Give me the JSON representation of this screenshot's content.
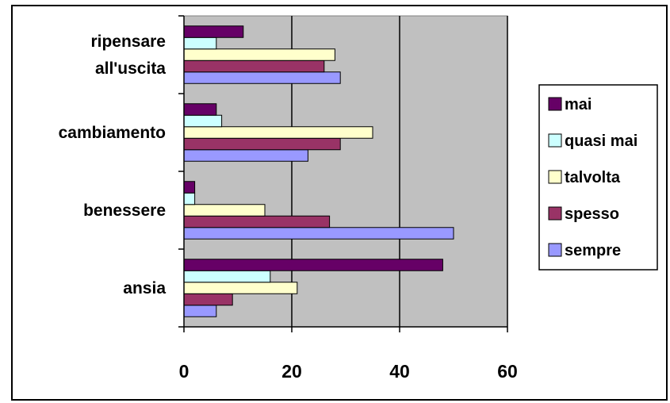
{
  "chart_data": {
    "type": "bar",
    "orientation": "horizontal",
    "categories": [
      "ansia",
      "benessere",
      "cambiamento",
      "ripensare all'uscita"
    ],
    "category_label_lines": {
      "ansia": [
        "ansia"
      ],
      "benessere": [
        "benessere"
      ],
      "cambiamento": [
        "cambiamento"
      ],
      "ripensare all'uscita": [
        "ripensare",
        "all'uscita"
      ]
    },
    "series": [
      {
        "name": "sempre",
        "color": "#9999ff",
        "values": [
          6,
          50,
          23,
          29
        ]
      },
      {
        "name": "spesso",
        "color": "#993366",
        "values": [
          9,
          27,
          29,
          26
        ]
      },
      {
        "name": "talvolta",
        "color": "#ffffcc",
        "values": [
          21,
          15,
          35,
          28
        ]
      },
      {
        "name": "quasi mai",
        "color": "#ccffff",
        "values": [
          16,
          2,
          7,
          6
        ]
      },
      {
        "name": "mai",
        "color": "#660066",
        "values": [
          48,
          2,
          6,
          11
        ]
      }
    ],
    "legend_order": [
      "mai",
      "quasi mai",
      "talvolta",
      "spesso",
      "sempre"
    ],
    "xlim": [
      0,
      60
    ],
    "xticks": [
      0,
      20,
      40,
      60
    ],
    "grid": true,
    "plot_background": "#c0c0c0",
    "legend_position": "right",
    "title": "",
    "xlabel": "",
    "ylabel": ""
  }
}
